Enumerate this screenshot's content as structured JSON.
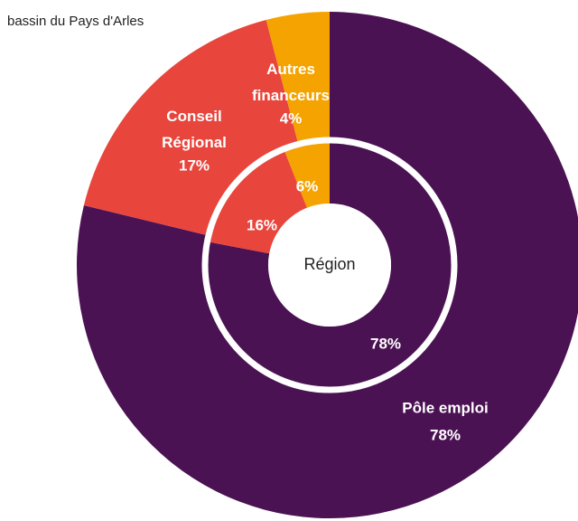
{
  "chart_data": {
    "type": "donut",
    "title": "bassin du Pays d'Arles",
    "center_label": "Région",
    "categories": [
      "Pôle emploi",
      "Conseil Régional",
      "Autres financeurs"
    ],
    "colors": [
      "#4a1252",
      "#e8453c",
      "#f5a300"
    ],
    "series": [
      {
        "name": "bassin du Pays d'Arles",
        "values": [
          78,
          17,
          4
        ],
        "value_labels": [
          "78%",
          "17%",
          "4%"
        ]
      },
      {
        "name": "Région",
        "values": [
          78,
          16,
          6
        ],
        "value_labels": [
          "78%",
          "16%",
          "6%"
        ]
      }
    ]
  }
}
